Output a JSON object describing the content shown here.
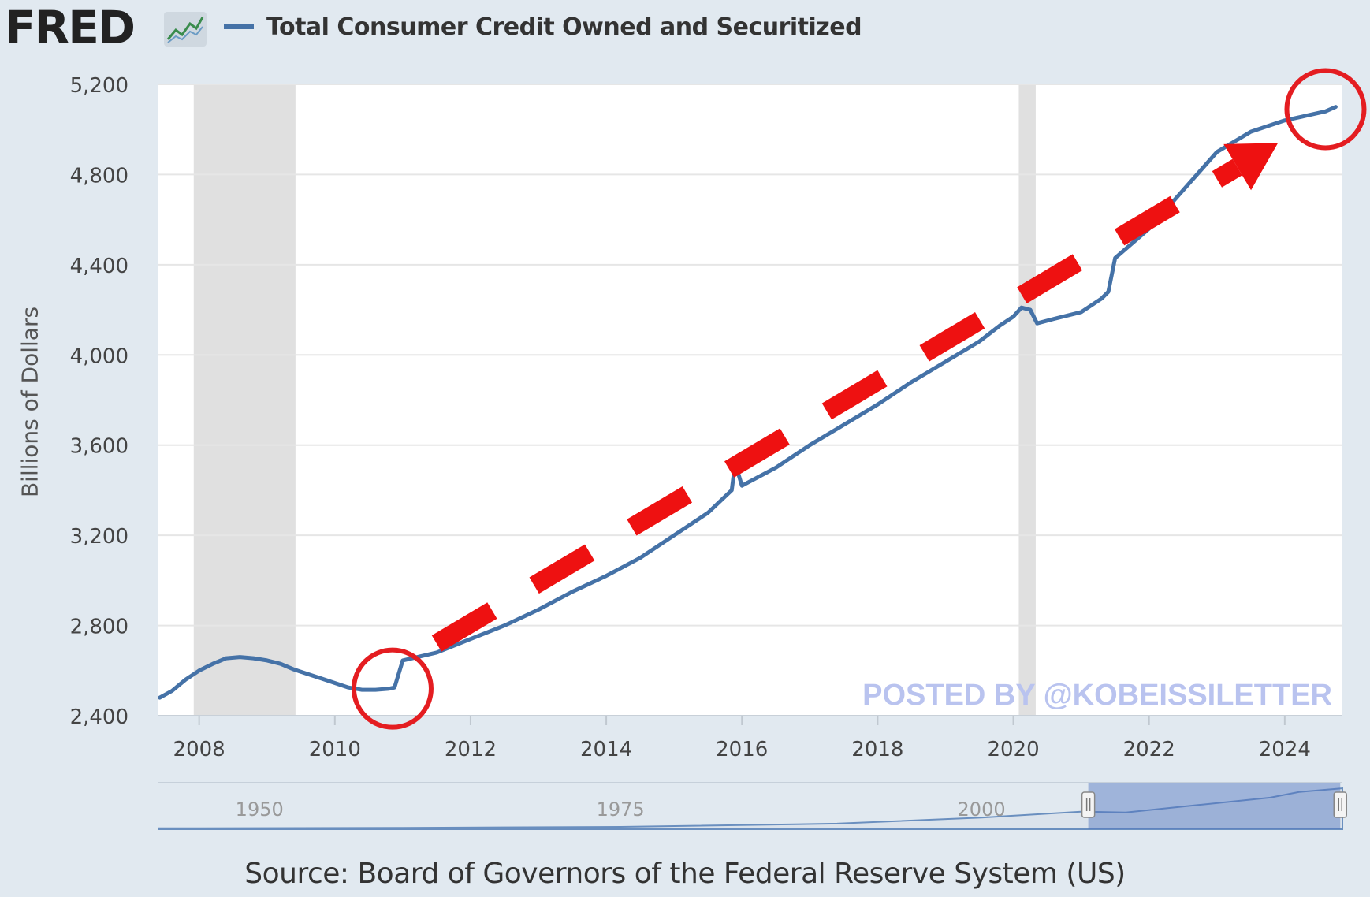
{
  "header": {
    "logo_text": "FRED",
    "logo_icon": "line-chart-icon",
    "series_label": "Total Consumer Credit Owned and Securitized",
    "series_color": "#4572a7"
  },
  "chart_data": {
    "type": "line",
    "title": "",
    "ylabel": "Billions of Dollars",
    "xlabel": "",
    "xlim": [
      2007.4,
      2024.85
    ],
    "ylim": [
      2400,
      5200
    ],
    "y_ticks": [
      2400,
      2800,
      3200,
      3600,
      4000,
      4400,
      4800,
      5200
    ],
    "y_tick_labels": [
      "2,400",
      "2,800",
      "3,200",
      "3,600",
      "4,000",
      "4,400",
      "4,800",
      "5,200"
    ],
    "x_ticks": [
      2008,
      2010,
      2012,
      2014,
      2016,
      2018,
      2020,
      2022,
      2024
    ],
    "x_tick_labels": [
      "2008",
      "2010",
      "2012",
      "2014",
      "2016",
      "2018",
      "2020",
      "2022",
      "2024"
    ],
    "grid": true,
    "recessions": [
      [
        2007.92,
        2009.42
      ],
      [
        2020.08,
        2020.33
      ]
    ],
    "series": [
      {
        "name": "Total Consumer Credit Owned and Securitized",
        "color": "#4572a7",
        "x": [
          2007.42,
          2007.6,
          2007.8,
          2008.0,
          2008.2,
          2008.4,
          2008.6,
          2008.8,
          2009.0,
          2009.2,
          2009.4,
          2009.6,
          2009.8,
          2010.0,
          2010.2,
          2010.4,
          2010.6,
          2010.8,
          2010.88,
          2011.0,
          2011.5,
          2012.0,
          2012.5,
          2013.0,
          2013.5,
          2014.0,
          2014.5,
          2015.0,
          2015.5,
          2015.85,
          2015.9,
          2016.0,
          2016.5,
          2017.0,
          2017.5,
          2018.0,
          2018.5,
          2019.0,
          2019.5,
          2019.8,
          2020.0,
          2020.12,
          2020.25,
          2020.35,
          2020.6,
          2021.0,
          2021.3,
          2021.4,
          2021.5,
          2022.0,
          2022.5,
          2023.0,
          2023.5,
          2024.0,
          2024.3,
          2024.6,
          2024.75
        ],
        "y": [
          2480,
          2510,
          2560,
          2600,
          2630,
          2655,
          2660,
          2655,
          2645,
          2630,
          2605,
          2585,
          2565,
          2545,
          2525,
          2515,
          2515,
          2520,
          2525,
          2645,
          2680,
          2740,
          2800,
          2870,
          2950,
          3020,
          3100,
          3200,
          3300,
          3400,
          3520,
          3420,
          3500,
          3600,
          3690,
          3780,
          3880,
          3970,
          4060,
          4130,
          4170,
          4210,
          4200,
          4140,
          4160,
          4190,
          4250,
          4280,
          4430,
          4560,
          4730,
          4900,
          4990,
          5040,
          5060,
          5080,
          5100
        ]
      }
    ],
    "annotations": {
      "trend_arrow_from": [
        2011.5,
        2720
      ],
      "trend_arrow_to": [
        2023.9,
        4940
      ],
      "arrow_color": "#ee1111",
      "circles_at": [
        [
          2010.85,
          2520
        ],
        [
          2024.6,
          5090
        ]
      ],
      "watermark": "POSTED BY @KOBEISSILETTER"
    }
  },
  "navigator": {
    "labels": [
      "1950",
      "1975",
      "2000"
    ],
    "label_years": [
      1950,
      1975,
      2000
    ],
    "range": [
      1943,
      2025
    ],
    "selected": [
      2007.4,
      2024.85
    ]
  },
  "footer": {
    "source": "Source: Board of Governors of the Federal Reserve System (US)"
  }
}
